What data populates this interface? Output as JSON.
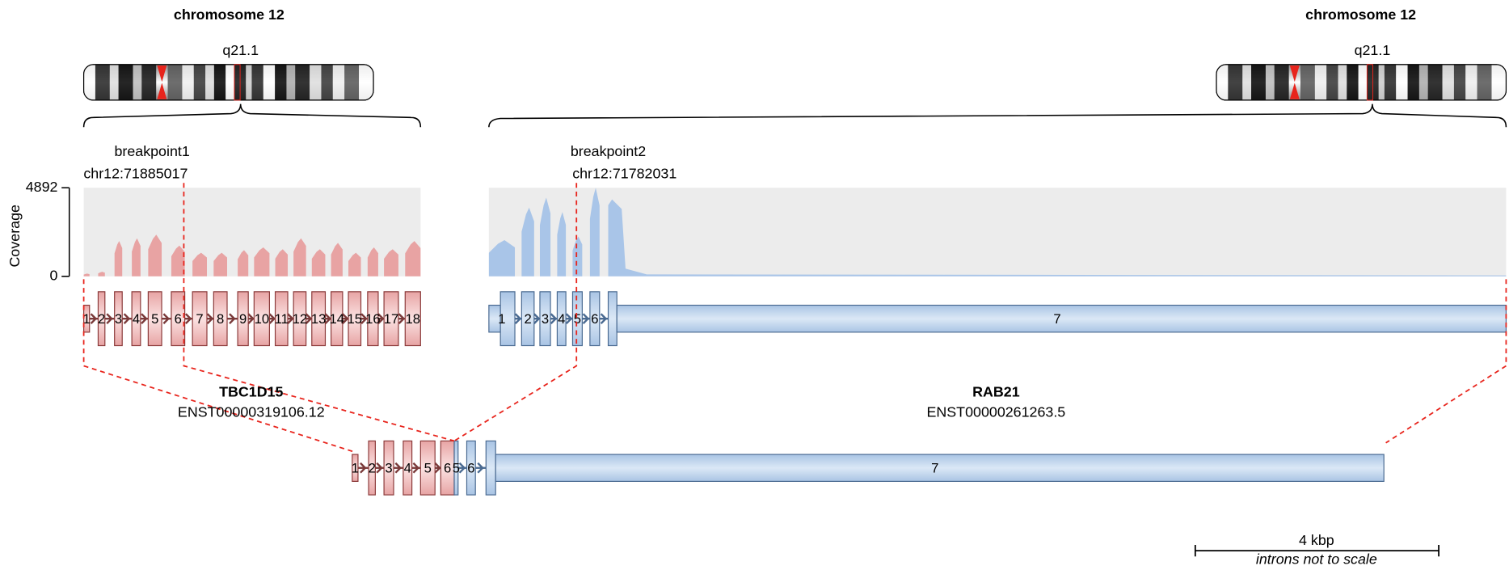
{
  "chromosomes": [
    {
      "title": "chromosome 12",
      "band": "q21.1"
    },
    {
      "title": "chromosome 12",
      "band": "q21.1"
    }
  ],
  "breakpoints": [
    {
      "label": "breakpoint1",
      "position": "chr12:71885017"
    },
    {
      "label": "breakpoint2",
      "position": "chr12:71782031"
    }
  ],
  "coverage": {
    "axis_label": "Coverage",
    "ylim": [
      0,
      4892
    ],
    "yticks": [
      0,
      4892
    ],
    "gene1": [
      150,
      250,
      1950,
      2100,
      2300,
      1700,
      1300,
      1300,
      1450,
      1600,
      1500,
      2100,
      1500,
      1850,
      1300,
      1600,
      1500,
      1950
    ],
    "gene2": [
      2000,
      3800,
      4350,
      3550,
      2200,
      4892,
      4250
    ]
  },
  "genes": [
    {
      "name": "TBC1D15",
      "transcript": "ENST00000319106.12",
      "exons": [
        "1",
        "2",
        "3",
        "4",
        "5",
        "6",
        "7",
        "8",
        "9",
        "10",
        "11",
        "12",
        "13",
        "14",
        "15",
        "16",
        "17",
        "18"
      ]
    },
    {
      "name": "RAB21",
      "transcript": "ENST00000261263.5",
      "exons": [
        "1",
        "2",
        "3",
        "4",
        "5",
        "6",
        "7"
      ]
    }
  ],
  "fusion": {
    "exons": [
      "1",
      "2",
      "3",
      "4",
      "5",
      "6",
      "5",
      "6",
      "7"
    ]
  },
  "scale_bar": {
    "label": "4 kbp",
    "note": "introns not to scale"
  }
}
